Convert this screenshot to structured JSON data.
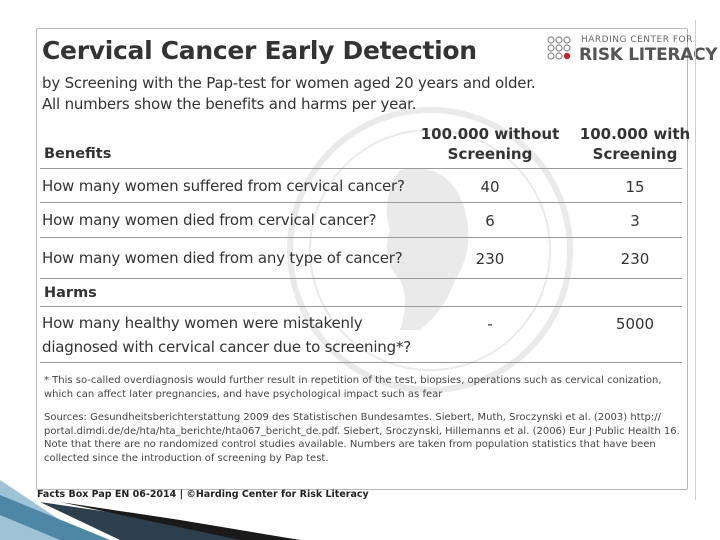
{
  "logo": {
    "top_text": "HARDING CENTER FOR",
    "main_text": "RISK LITERACY",
    "accent_color": "#c0262d"
  },
  "header": {
    "title": "Cervical Cancer Early Detection",
    "subtitle_line1": "by Screening with the Pap-test for women aged 20 years and older.",
    "subtitle_line2": "All numbers show the benefits and harms per year."
  },
  "columns": {
    "without_line1": "100.000 without",
    "without_line2": "Screening",
    "with_line1": "100.000 with",
    "with_line2": "Screening"
  },
  "benefits": {
    "label": "Benefits",
    "rows": [
      {
        "question": "How many women suffered from cervical cancer?",
        "without": "40",
        "with": "15"
      },
      {
        "question": "How many women died from cervical cancer?",
        "without": "6",
        "with": "3"
      },
      {
        "question": "How many women died from any type of cancer?",
        "without": "230",
        "with": "230"
      }
    ]
  },
  "harms": {
    "label": "Harms",
    "rows": [
      {
        "question_line1": "How many healthy women were mistakenly",
        "question_line2": "diagnosed with cervical cancer due to screening*?",
        "without": "-",
        "with": "5000"
      }
    ]
  },
  "notes": {
    "footnote": "* This so-called overdiagnosis would further result in repetition of the test, biopsies, operations such as cervical conization, which can affect later pregnancies, and have psychological impact such as fear",
    "sources": "Sources: Gesundheitsberichterstattung 2009 des Statistischen Bundesamtes. Siebert, Muth, Sroczynski et al. (2003) http:// portal.dimdi.de/de/hta/hta_berichte/hta067_bericht_de.pdf. Siebert, Sroczynski, Hillemanns et al. (2006) Eur J Public Health 16. Note that there are no randomized control studies available. Numbers are taken from population statistics that have been collected since the introduction of screening by Pap test."
  },
  "footer": {
    "text": "Facts Box Pap EN 06-2014 | ©Harding Center for Risk Literacy"
  }
}
